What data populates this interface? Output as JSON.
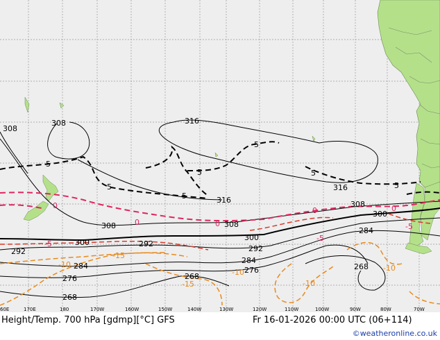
{
  "title": "Height/Temp. 700 hPa [gdmp][°C] GFS",
  "valid_time": "Fr 16-01-2026 00:00 UTC (06+114)",
  "credit": "©weatheronline.co.uk",
  "lon_ticks": [
    "60E",
    "170E",
    "180",
    "170W",
    "160W",
    "150W",
    "140W",
    "130W",
    "120W",
    "110W",
    "100W",
    "90W",
    "80W",
    "70W"
  ],
  "colors": {
    "ocean": "#eeeeee",
    "land": "#b4e08a",
    "height": "#000000",
    "temp_zero": "#e0245e",
    "temp_neg": "#e8891c",
    "temp_pos": "#d63a2a"
  },
  "height_labels": [
    "308",
    "308",
    "316",
    "316",
    "316",
    "308",
    "308",
    "308",
    "300",
    "300",
    "300",
    "292",
    "292",
    "292",
    "284",
    "284",
    "284",
    "276",
    "276",
    "268",
    "268",
    "268"
  ],
  "temp_labels": {
    "five": [
      "5",
      "5",
      "5",
      "5",
      "5",
      "5",
      "5"
    ],
    "zero": [
      "0",
      "0",
      "0",
      "0",
      "0"
    ],
    "minus5": [
      "-5",
      "-5",
      "-5"
    ],
    "minus10": [
      "-10",
      "-10",
      "-10",
      "-10"
    ],
    "minus15": [
      "-15",
      "-15"
    ]
  }
}
